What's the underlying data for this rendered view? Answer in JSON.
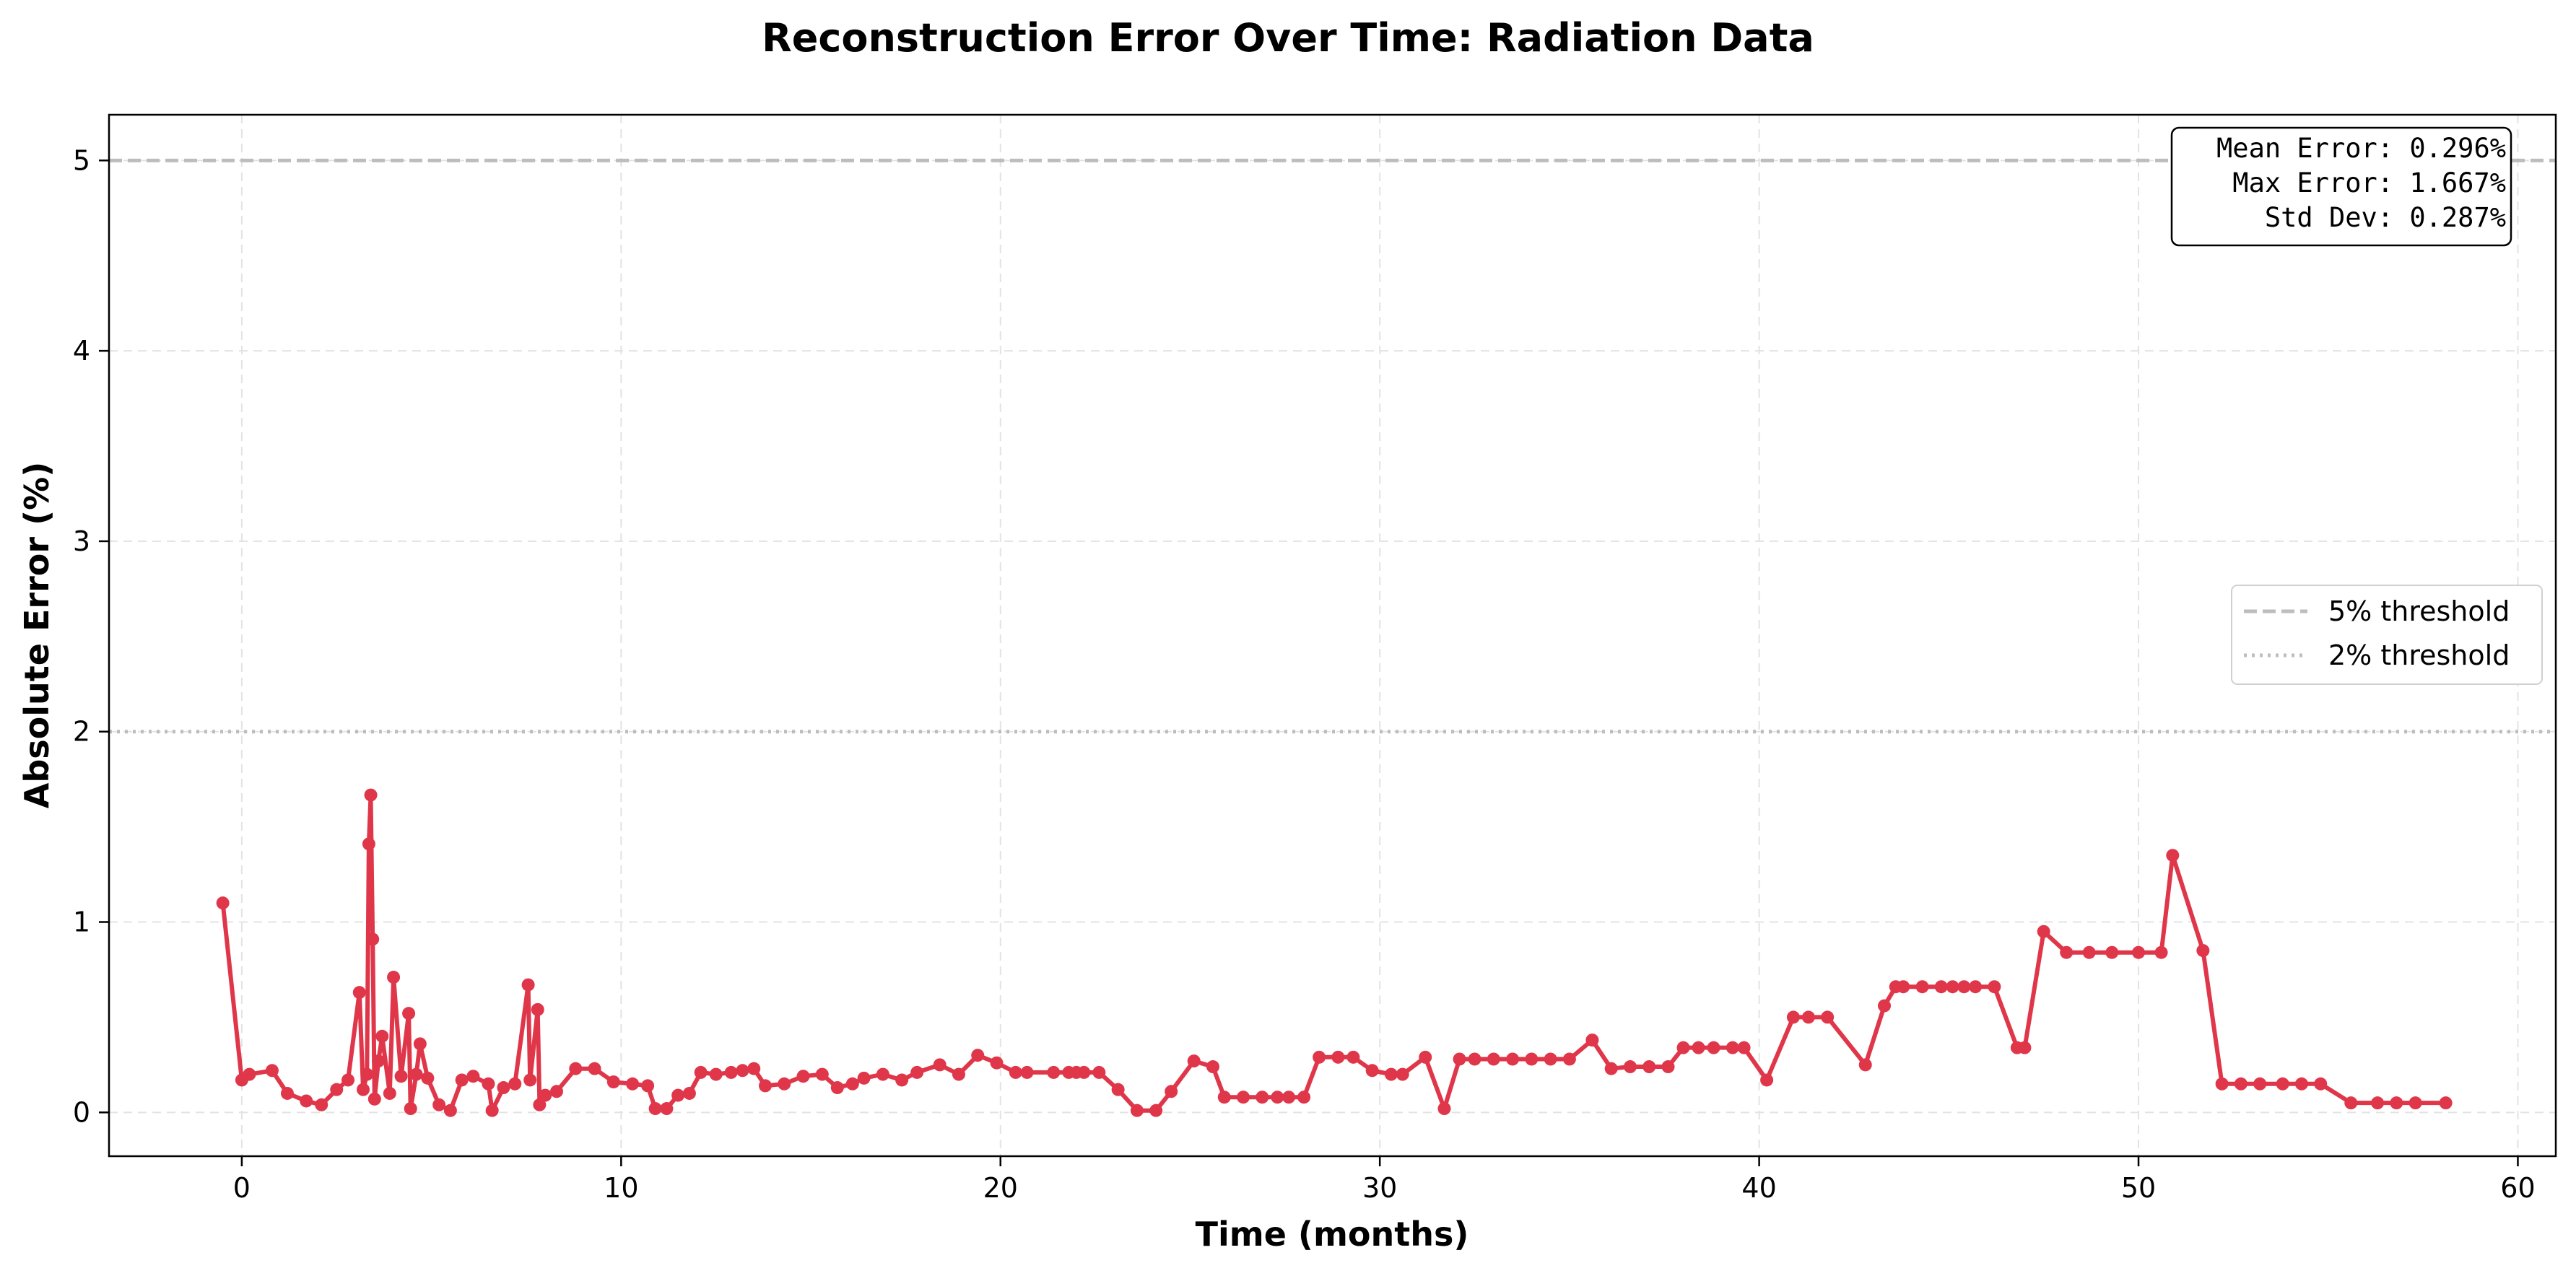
{
  "chart_data": {
    "type": "line",
    "title": "Reconstruction Error Over Time: Radiation Data",
    "xlabel": "Time (months)",
    "ylabel": "Absolute Error (%)",
    "xlim": [
      -3.5,
      61
    ],
    "ylim": [
      -0.23,
      5.24
    ],
    "xticks": [
      0,
      10,
      20,
      30,
      40,
      50,
      60
    ],
    "yticks": [
      0,
      1,
      2,
      3,
      4,
      5
    ],
    "grid": true,
    "line_color": "#e0364a",
    "thresholds": [
      {
        "name": "5% threshold",
        "value": 5,
        "style": "dashed",
        "color": "#bdbdbd"
      },
      {
        "name": "2% threshold",
        "value": 2,
        "style": "dotted",
        "color": "#bdbdbd"
      }
    ],
    "legend_position": "center-right",
    "stats": [
      "Mean Error: 0.296%",
      "Max Error: 1.667%",
      "Std Dev: 0.287%"
    ],
    "series": [
      {
        "x": [
          -0.5,
          0,
          0.2,
          0.8,
          1.2,
          1.7,
          2.1,
          2.5,
          2.8,
          3.1,
          3.2,
          3.3,
          3.35,
          3.4,
          3.45,
          3.5,
          3.6,
          3.7,
          3.9,
          4.0,
          4.2,
          4.4,
          4.45,
          4.6,
          4.7,
          4.9,
          5.2,
          5.5,
          5.8,
          6.1,
          6.5,
          6.6,
          6.9,
          7.2,
          7.55,
          7.6,
          7.8,
          7.85,
          8.0,
          8.3,
          8.8,
          9.3,
          9.8,
          10.3,
          10.7,
          10.9,
          11.2,
          11.5,
          11.8,
          12.1,
          12.5,
          12.9,
          13.2,
          13.5,
          13.8,
          14.3,
          14.8,
          15.3,
          15.7,
          16.1,
          16.4,
          16.9,
          17.4,
          17.8,
          18.4,
          18.9,
          19.4,
          19.9,
          20.4,
          20.7,
          21.4,
          21.8,
          22.0,
          22.2,
          22.6,
          23.1,
          23.6,
          24.1,
          24.5,
          25.1,
          25.6,
          25.9,
          26.4,
          26.9,
          27.3,
          27.6,
          28.0,
          28.4,
          28.9,
          29.3,
          29.8,
          30.3,
          30.6,
          31.2,
          31.7,
          32.1,
          32.5,
          33.0,
          33.5,
          34.0,
          34.5,
          35.0,
          35.6,
          36.1,
          36.6,
          37.1,
          37.6,
          38.0,
          38.4,
          38.8,
          39.3,
          39.6,
          40.2,
          40.9,
          41.3,
          41.8,
          42.8,
          43.3,
          43.6,
          43.8,
          44.3,
          44.8,
          45.1,
          45.4,
          45.7,
          46.2,
          46.8,
          47.0,
          47.5,
          48.1,
          48.7,
          49.3,
          50.0,
          50.6,
          50.9,
          51.7,
          52.2,
          52.7,
          53.2,
          53.8,
          54.3,
          54.8,
          55.6,
          56.3,
          56.8,
          57.3,
          58.1
        ],
        "values": [
          1.1,
          0.17,
          0.2,
          0.22,
          0.1,
          0.06,
          0.04,
          0.12,
          0.17,
          0.63,
          0.12,
          0.2,
          1.41,
          1.667,
          0.91,
          0.07,
          0.27,
          0.4,
          0.1,
          0.71,
          0.19,
          0.52,
          0.02,
          0.2,
          0.36,
          0.18,
          0.04,
          0.01,
          0.17,
          0.19,
          0.15,
          0.01,
          0.13,
          0.15,
          0.67,
          0.17,
          0.54,
          0.04,
          0.09,
          0.11,
          0.23,
          0.23,
          0.16,
          0.15,
          0.14,
          0.02,
          0.02,
          0.09,
          0.1,
          0.21,
          0.2,
          0.21,
          0.22,
          0.23,
          0.14,
          0.15,
          0.19,
          0.2,
          0.13,
          0.15,
          0.18,
          0.2,
          0.17,
          0.21,
          0.25,
          0.2,
          0.3,
          0.26,
          0.21,
          0.21,
          0.21,
          0.21,
          0.21,
          0.21,
          0.21,
          0.12,
          0.01,
          0.01,
          0.11,
          0.27,
          0.24,
          0.08,
          0.08,
          0.08,
          0.08,
          0.08,
          0.08,
          0.29,
          0.29,
          0.29,
          0.22,
          0.2,
          0.2,
          0.29,
          0.02,
          0.28,
          0.28,
          0.28,
          0.28,
          0.28,
          0.28,
          0.28,
          0.38,
          0.23,
          0.24,
          0.24,
          0.24,
          0.34,
          0.34,
          0.34,
          0.34,
          0.34,
          0.17,
          0.5,
          0.5,
          0.5,
          0.25,
          0.56,
          0.66,
          0.66,
          0.66,
          0.66,
          0.66,
          0.66,
          0.66,
          0.66,
          0.34,
          0.34,
          0.95,
          0.84,
          0.84,
          0.84,
          0.84,
          0.84,
          1.35,
          0.85,
          0.15,
          0.15,
          0.15,
          0.15,
          0.15,
          0.15,
          0.05,
          0.05,
          0.05,
          0.05,
          0.05
        ]
      }
    ]
  }
}
